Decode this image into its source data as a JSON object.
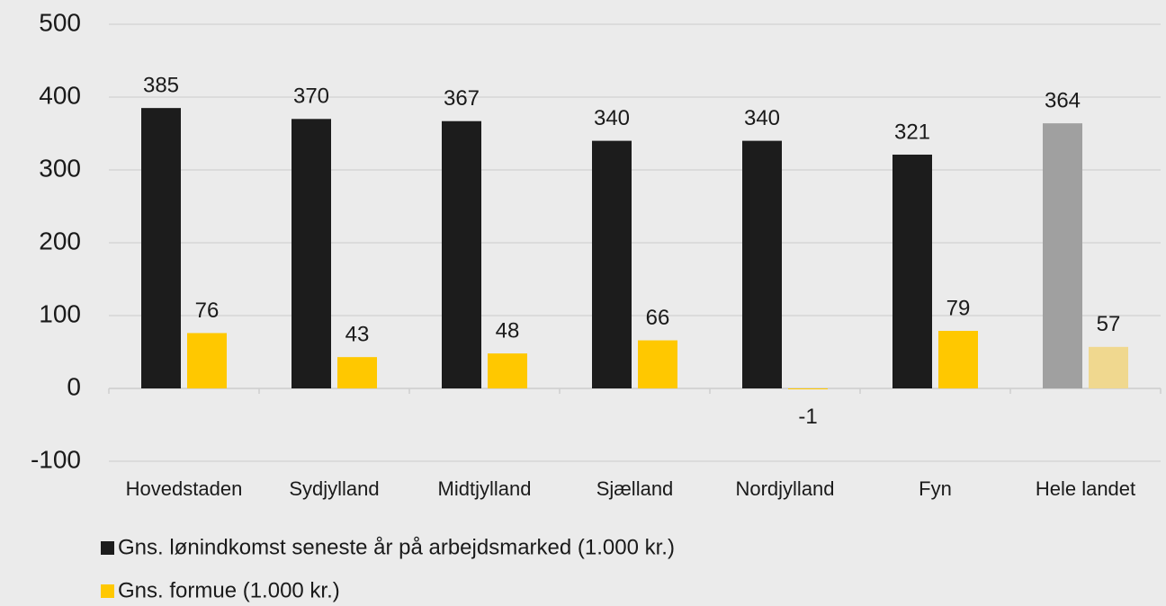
{
  "chart_data": {
    "type": "bar",
    "categories": [
      "Hovedstaden",
      "Sydjylland",
      "Midtjylland",
      "Sjælland",
      "Nordjylland",
      "Fyn",
      "Hele landet"
    ],
    "series": [
      {
        "name": "Gns. lønindkomst seneste år på arbejdsmarked (1.000 kr.)",
        "color": "#1c1c1c",
        "colors": [
          "#1c1c1c",
          "#1c1c1c",
          "#1c1c1c",
          "#1c1c1c",
          "#1c1c1c",
          "#1c1c1c",
          "#a0a0a0"
        ],
        "values": [
          385,
          370,
          367,
          340,
          340,
          321,
          364
        ]
      },
      {
        "name": "Gns. formue (1.000 kr.)",
        "color": "#ffc800",
        "colors": [
          "#ffc800",
          "#ffc800",
          "#ffc800",
          "#ffc800",
          "#ffc800",
          "#ffc800",
          "#f0d88f"
        ],
        "values": [
          76,
          43,
          48,
          66,
          -1,
          79,
          57
        ]
      }
    ],
    "ylim": [
      -100,
      500
    ],
    "yticks": [
      -100,
      0,
      100,
      200,
      300,
      400,
      500
    ],
    "grid": true
  }
}
